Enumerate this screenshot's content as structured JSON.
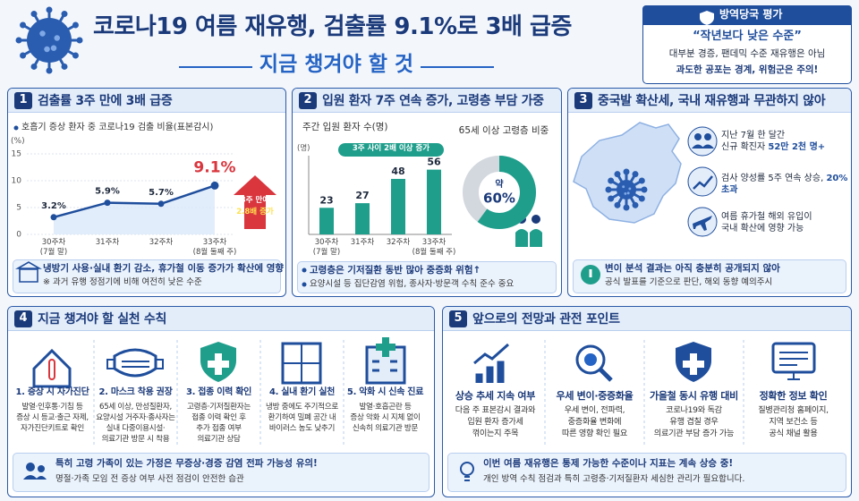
{
  "header": {
    "title": "코로나19 여름 재유행, 검출률 9.1%로 3배 급증",
    "subtitle": "지금 챙겨야 할 것"
  },
  "assessment": {
    "title": "방역당국 평가",
    "quote": "“작년보다 낮은 수준”",
    "lines": [
      "대부분 경증, 팬데믹 수준 재유행은 아님",
      "과도한 공포는 경계, 위험군은 주의!"
    ]
  },
  "chart_data": [
    {
      "type": "line",
      "title": "호흡기 증상 환자 중 코로나19 검출 비율(표본감시)",
      "y_label": "(%)",
      "categories": [
        "30주차\n(7월 말)",
        "31주차",
        "32주차",
        "33주차\n(8월 둘째 주)"
      ],
      "values": [
        3.2,
        5.9,
        5.7,
        9.1
      ],
      "value_labels": [
        "3.2%",
        "5.9%",
        "5.7%",
        "9.1%"
      ],
      "ylim": [
        0,
        15
      ],
      "yticks": [
        0,
        5,
        10,
        15
      ],
      "grid": true,
      "color": "#1f4e9c",
      "annotations": [
        "3주 만에",
        "2.8배 증가"
      ]
    },
    {
      "type": "bar",
      "title": "주간 입원 환자 수(명)",
      "y_label": "(명)",
      "annotation": "3주 사이 2배 이상 증가",
      "categories": [
        "30주차\n(7월 말)",
        "31주차",
        "32주차",
        "33주차\n(8월 둘째 주)"
      ],
      "values": [
        23,
        27,
        48,
        56
      ],
      "ylim": [
        0,
        65
      ],
      "color": "#1f9e8c"
    },
    {
      "type": "donut",
      "title": "65세 이상 고령층 비중",
      "center_label": "약",
      "values": [
        60
      ],
      "value_labels": [
        "60%"
      ],
      "color": "#1f9e8c"
    }
  ],
  "panels": [
    {
      "number": "1",
      "title": "검출률 3주 만에 3배 급증",
      "notes": [
        "냉방기 사용·실내 환기 감소, 휴가철 이동 증가가 확산에 영향",
        "※ 과거 유행 정점기에 비해 여전히 낮은 수준"
      ]
    },
    {
      "number": "2",
      "title": "입원 환자 7주 연속 증가, 고령층 부담 가중",
      "notes": [
        "고령층은 기저질환 동반 많아 중증화 위험↑",
        "요양시설 등 집단감염 위험, 종사자·방문객 수칙 준수 중요"
      ]
    },
    {
      "number": "3",
      "title": "중국발 확산세, 국내 재유행과 무관하지 않아",
      "items": [
        {
          "text": "지난 7월 한 달간\n신규 확진자",
          "highlight": "52만 2천 명+"
        },
        {
          "text": "검사 양성률 5주 연속 상승,",
          "highlight": "20% 초과"
        },
        {
          "text": "여름 휴가철 해외 유입이\n국내 확산에 영향 가능"
        }
      ],
      "notes": [
        "변이 분석 결과는 아직 충분히 공개되지 않아",
        "공식 발표를 기준으로 판단, 해외 동향 예의주시"
      ]
    },
    {
      "number": "4",
      "title": "지금 챙겨야 할 실천 수칙",
      "items": [
        {
          "title": "1. 증상 시 자가진단",
          "text": "발열·인후통·기침 등\n증상 시 등교·출근 자제,\n자가진단키트로 확인"
        },
        {
          "title": "2. 마스크 착용 권장",
          "text": "65세 이상, 만성질환자,\n요양시설 거주자·종사자는\n실내 다중이용시설·\n의료기관 방문 시 착용"
        },
        {
          "title": "3. 접종 이력 확인",
          "text": "고령층·기저질환자는\n접종 이력 확인 후\n추가 접종 여부\n의료기관 상담"
        },
        {
          "title": "4. 실내 환기 실천",
          "text": "냉방 중에도 주기적으로\n환기하여 밀폐 공간 내\n바이러스 농도 낮추기"
        },
        {
          "title": "5. 악화 시 신속 진료",
          "text": "발열·호흡곤란 등\n증상 악화 시 지체 없이\n신속히 의료기관 방문"
        }
      ],
      "notes": [
        "특히 고령 가족이 있는 가정은 무증상·경증 감염 전파 가능성 유의!",
        "명절·가족 모임 전 증상 여부 사전 점검이 안전한 습관"
      ]
    },
    {
      "number": "5",
      "title": "앞으로의 전망과 관전 포인트",
      "items": [
        {
          "title": "상승 추세 지속 여부",
          "text": "다음 주 표본감시 결과와\n입원 환자 증가세\n꺾이는지 주목"
        },
        {
          "title": "우세 변이·중증화율",
          "text": "우세 변이, 전파력,\n중증화율 변화에\n따른 영향 확인 필요"
        },
        {
          "title": "가을철 동시 유행 대비",
          "text": "코로나19와 독감\n유행 겹칠 경우\n의료기관 부담 증가 가능"
        },
        {
          "title": "정확한 정보 확인",
          "text": "질병관리청 홈페이지,\n지역 보건소 등\n공식 채널 활용"
        }
      ],
      "notes": [
        "이번 여름 재유행은 통제 가능한 수준이나 지표는 계속 상승 중!",
        "개인 방역 수칙 점검과 특히 고령층·기저질환자 세심한 관리가 필요합니다."
      ]
    }
  ]
}
